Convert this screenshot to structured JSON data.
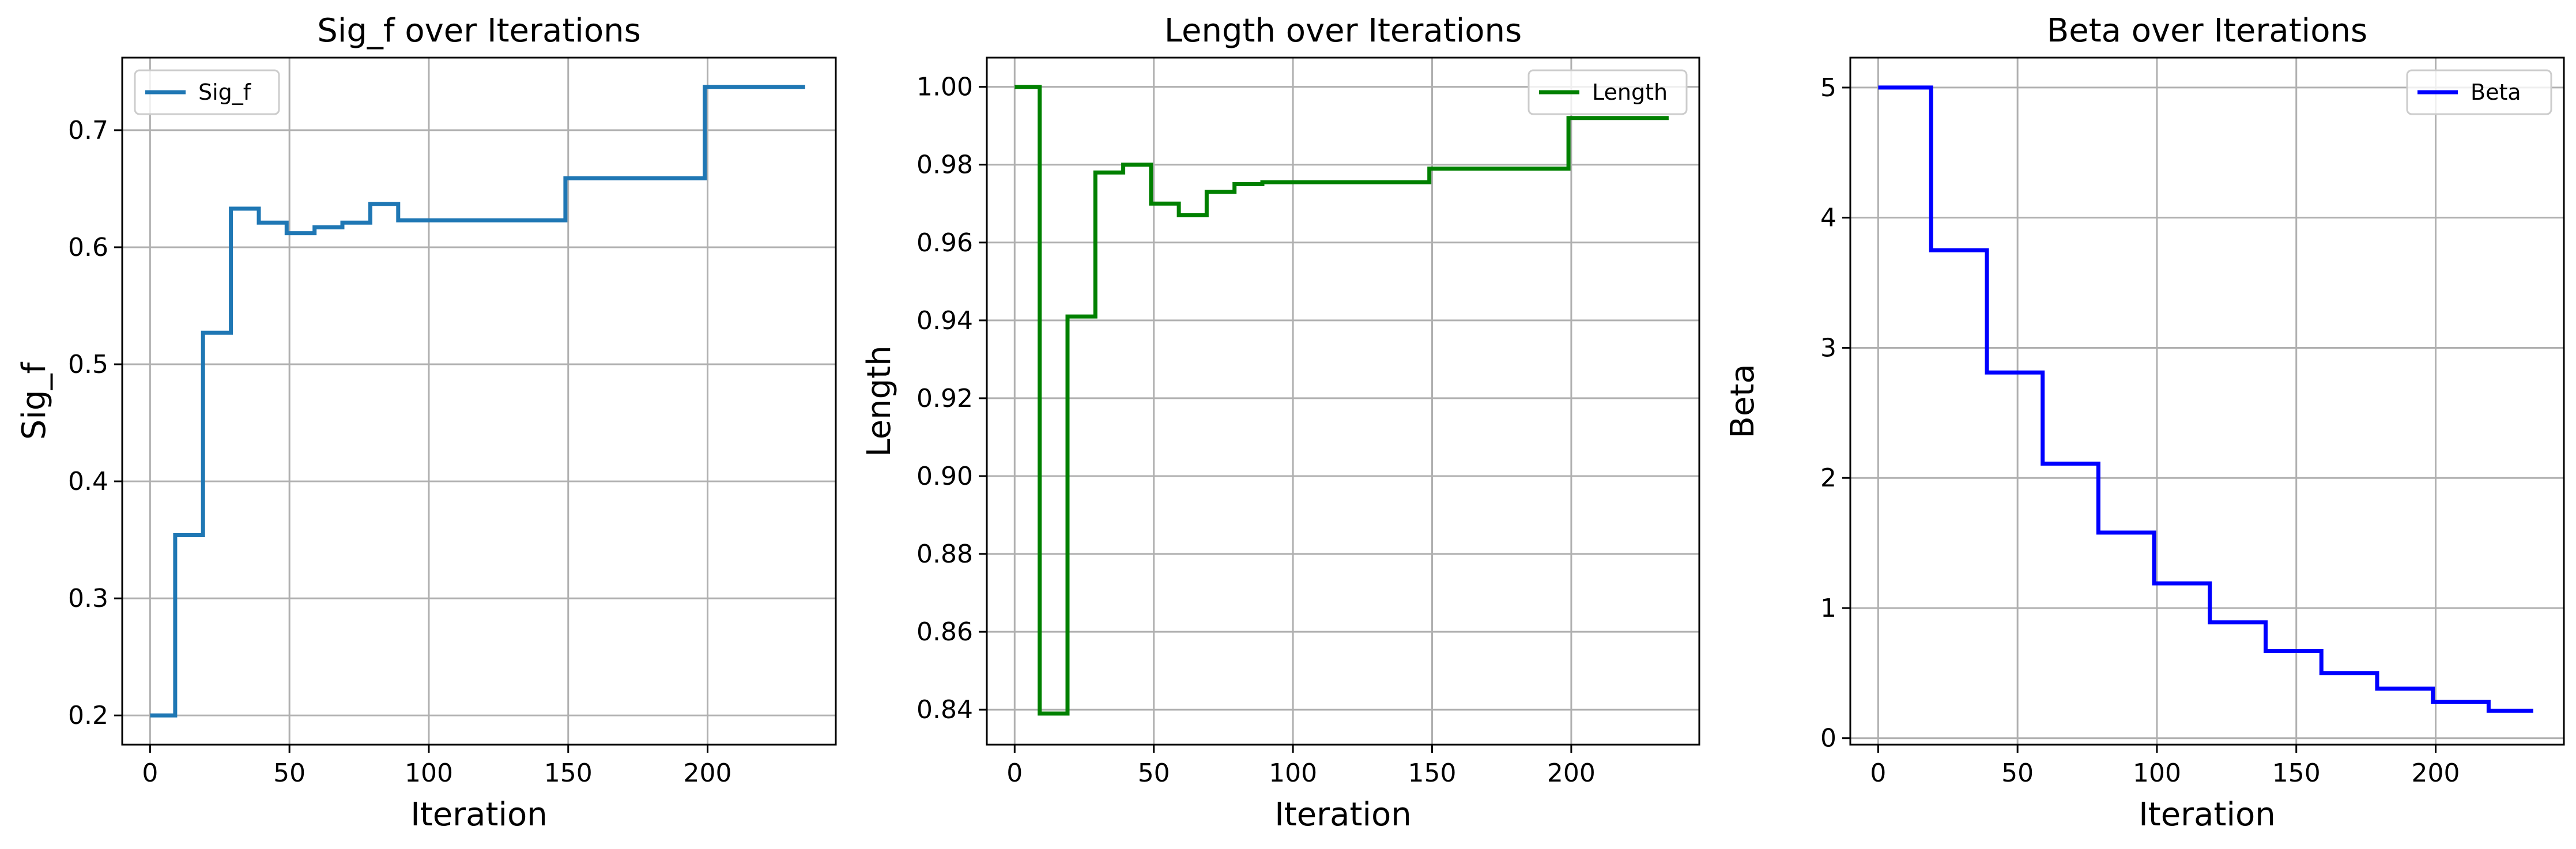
{
  "chart_data": [
    {
      "type": "line",
      "title": "Sig_f over Iterations",
      "xlabel": "Iteration",
      "ylabel": "Sig_f",
      "xlim": [
        -10,
        246
      ],
      "ylim": [
        0.175,
        0.762
      ],
      "xticks": [
        0,
        50,
        100,
        150,
        200
      ],
      "xtick_labels": [
        "0",
        "50",
        "100",
        "150",
        "200"
      ],
      "yticks": [
        0.2,
        0.3,
        0.4,
        0.5,
        0.6,
        0.7
      ],
      "ytick_labels": [
        "0.2",
        "0.3",
        "0.4",
        "0.5",
        "0.6",
        "0.7"
      ],
      "grid": true,
      "legend": "top-left",
      "step": true,
      "series": [
        {
          "name": "Sig_f",
          "color": "#1f77b4",
          "points": [
            [
              0,
              0.2
            ],
            [
              9,
              0.2
            ],
            [
              9,
              0.354
            ],
            [
              19,
              0.354
            ],
            [
              19,
              0.527
            ],
            [
              29,
              0.527
            ],
            [
              29,
              0.633
            ],
            [
              39,
              0.633
            ],
            [
              39,
              0.621
            ],
            [
              49,
              0.621
            ],
            [
              49,
              0.612
            ],
            [
              59,
              0.612
            ],
            [
              59,
              0.617
            ],
            [
              69,
              0.617
            ],
            [
              69,
              0.621
            ],
            [
              79,
              0.621
            ],
            [
              79,
              0.637
            ],
            [
              89,
              0.637
            ],
            [
              89,
              0.623
            ],
            [
              149,
              0.623
            ],
            [
              149,
              0.659
            ],
            [
              199,
              0.659
            ],
            [
              199,
              0.737
            ],
            [
              235,
              0.737
            ]
          ]
        }
      ]
    },
    {
      "type": "line",
      "title": "Length over Iterations",
      "xlabel": "Iteration",
      "ylabel": "Length",
      "xlim": [
        -10,
        246
      ],
      "ylim": [
        0.831,
        1.0075
      ],
      "xticks": [
        0,
        50,
        100,
        150,
        200
      ],
      "xtick_labels": [
        "0",
        "50",
        "100",
        "150",
        "200"
      ],
      "yticks": [
        0.84,
        0.86,
        0.88,
        0.9,
        0.92,
        0.94,
        0.96,
        0.98,
        1.0
      ],
      "ytick_labels": [
        "0.84",
        "0.86",
        "0.88",
        "0.90",
        "0.92",
        "0.94",
        "0.96",
        "0.98",
        "1.00"
      ],
      "grid": true,
      "legend": "top-right",
      "step": true,
      "series": [
        {
          "name": "Length",
          "color": "#008000",
          "points": [
            [
              0,
              1.0
            ],
            [
              9,
              1.0
            ],
            [
              9,
              0.839
            ],
            [
              19,
              0.839
            ],
            [
              19,
              0.941
            ],
            [
              29,
              0.941
            ],
            [
              29,
              0.978
            ],
            [
              39,
              0.978
            ],
            [
              39,
              0.98
            ],
            [
              49,
              0.98
            ],
            [
              49,
              0.97
            ],
            [
              59,
              0.97
            ],
            [
              59,
              0.967
            ],
            [
              69,
              0.967
            ],
            [
              69,
              0.973
            ],
            [
              79,
              0.973
            ],
            [
              79,
              0.975
            ],
            [
              89,
              0.975
            ],
            [
              89,
              0.9755
            ],
            [
              149,
              0.9755
            ],
            [
              149,
              0.979
            ],
            [
              199,
              0.979
            ],
            [
              199,
              0.992
            ],
            [
              235,
              0.992
            ]
          ]
        }
      ]
    },
    {
      "type": "line",
      "title": "Beta over Iterations",
      "xlabel": "Iteration",
      "ylabel": "Beta",
      "xlim": [
        -10,
        246
      ],
      "ylim": [
        -0.05,
        5.23
      ],
      "xticks": [
        0,
        50,
        100,
        150,
        200
      ],
      "xtick_labels": [
        "0",
        "50",
        "100",
        "150",
        "200"
      ],
      "yticks": [
        0,
        1,
        2,
        3,
        4,
        5
      ],
      "ytick_labels": [
        "0",
        "1",
        "2",
        "3",
        "4",
        "5"
      ],
      "grid": true,
      "legend": "top-right",
      "step": true,
      "series": [
        {
          "name": "Beta",
          "color": "#0000ff",
          "points": [
            [
              0,
              5.0
            ],
            [
              19,
              5.0
            ],
            [
              19,
              3.75
            ],
            [
              39,
              3.75
            ],
            [
              39,
              2.81
            ],
            [
              59,
              2.81
            ],
            [
              59,
              2.11
            ],
            [
              79,
              2.11
            ],
            [
              79,
              1.58
            ],
            [
              99,
              1.58
            ],
            [
              99,
              1.19
            ],
            [
              119,
              1.19
            ],
            [
              119,
              0.89
            ],
            [
              139,
              0.89
            ],
            [
              139,
              0.67
            ],
            [
              159,
              0.67
            ],
            [
              159,
              0.5
            ],
            [
              179,
              0.5
            ],
            [
              179,
              0.38
            ],
            [
              199,
              0.38
            ],
            [
              199,
              0.28
            ],
            [
              219,
              0.28
            ],
            [
              219,
              0.21
            ],
            [
              235,
              0.21
            ]
          ]
        }
      ]
    }
  ]
}
